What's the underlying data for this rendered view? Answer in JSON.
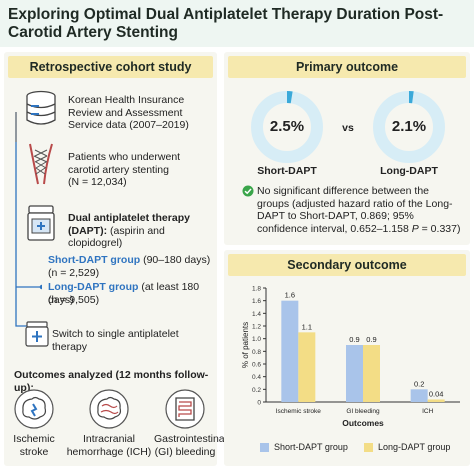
{
  "title": "Exploring Optimal Dual Antiplatelet Therapy Duration Post-Carotid Artery Stenting",
  "left": {
    "header": "Retrospective cohort study",
    "data_source": "Korean Health Insurance Review and Assessment Service data (2007–2019)",
    "patients_line1": "Patients who underwent carotid artery stenting",
    "patients_n": "(N = 12,034)",
    "dapt_title": "Dual antiplatelet therapy (DAPT):",
    "dapt_detail": "(aspirin and clopidogrel)",
    "short_label": "Short-DAPT group",
    "short_range": "(90–180 days)",
    "short_n": "(n = 2,529)",
    "long_label": "Long-DAPT group",
    "long_range": "(at least 180 days)",
    "long_n": "(n = 9,505)",
    "switch": "Switch to single antiplatelet therapy",
    "outcomes_title": "Outcomes analyzed (12 months follow-up):",
    "outcome_labels": [
      "Ischemic stroke",
      "Intracranial hemorrhage (ICH)",
      "Gastrointestinal (GI) bleeding"
    ],
    "icons": [
      "database-icon",
      "stent-icon",
      "pill-bottle-icon",
      "pill-pack-icon",
      "brain-icon",
      "brain-icon",
      "intestine-icon"
    ]
  },
  "primary": {
    "header": "Primary outcome",
    "short_value": "2.5%",
    "short_name": "Short-DAPT",
    "vs": "vs",
    "long_value": "2.1%",
    "long_name": "Long-DAPT",
    "short_fraction": 0.025,
    "long_fraction": 0.021,
    "note_lead": "No significant difference between the groups (adjusted hazard ratio of the Long-DAPT to Short-DAPT, 0.869; 95% confidence interval, 0.652–1.158",
    "note_p": "P",
    "note_tail": " = 0.337)"
  },
  "secondary": {
    "header": "Secondary outcome"
  },
  "chart_data": {
    "type": "bar",
    "categories": [
      "Ischemic stroke",
      "GI bleeding",
      "ICH"
    ],
    "series": [
      {
        "name": "Short-DAPT group",
        "values": [
          1.6,
          0.9,
          0.2
        ],
        "labels": [
          "1.6",
          "0.9",
          "0.2"
        ],
        "color": "#a9c4ea"
      },
      {
        "name": "Long-DAPT group",
        "values": [
          1.1,
          0.9,
          0.04
        ],
        "labels": [
          "1.1",
          "0.9",
          "0.04"
        ],
        "color": "#f3dd86"
      }
    ],
    "xlabel": "Outcomes",
    "ylabel": "% of patients",
    "ylim": [
      0,
      1.8
    ],
    "yticks": [
      "0",
      "0.2",
      "0.4",
      "0.6",
      "0.8",
      "1.0",
      "1.2",
      "1.4",
      "1.6",
      "1.8"
    ],
    "grid": false,
    "legend": "bottom"
  },
  "colors": {
    "accent_blue": "#2f74c0",
    "donut_track": "#d7edf6",
    "donut_fill": "#3aa9d9",
    "header_yellow": "#f6e9ae",
    "check_green": "#3aa54a"
  }
}
